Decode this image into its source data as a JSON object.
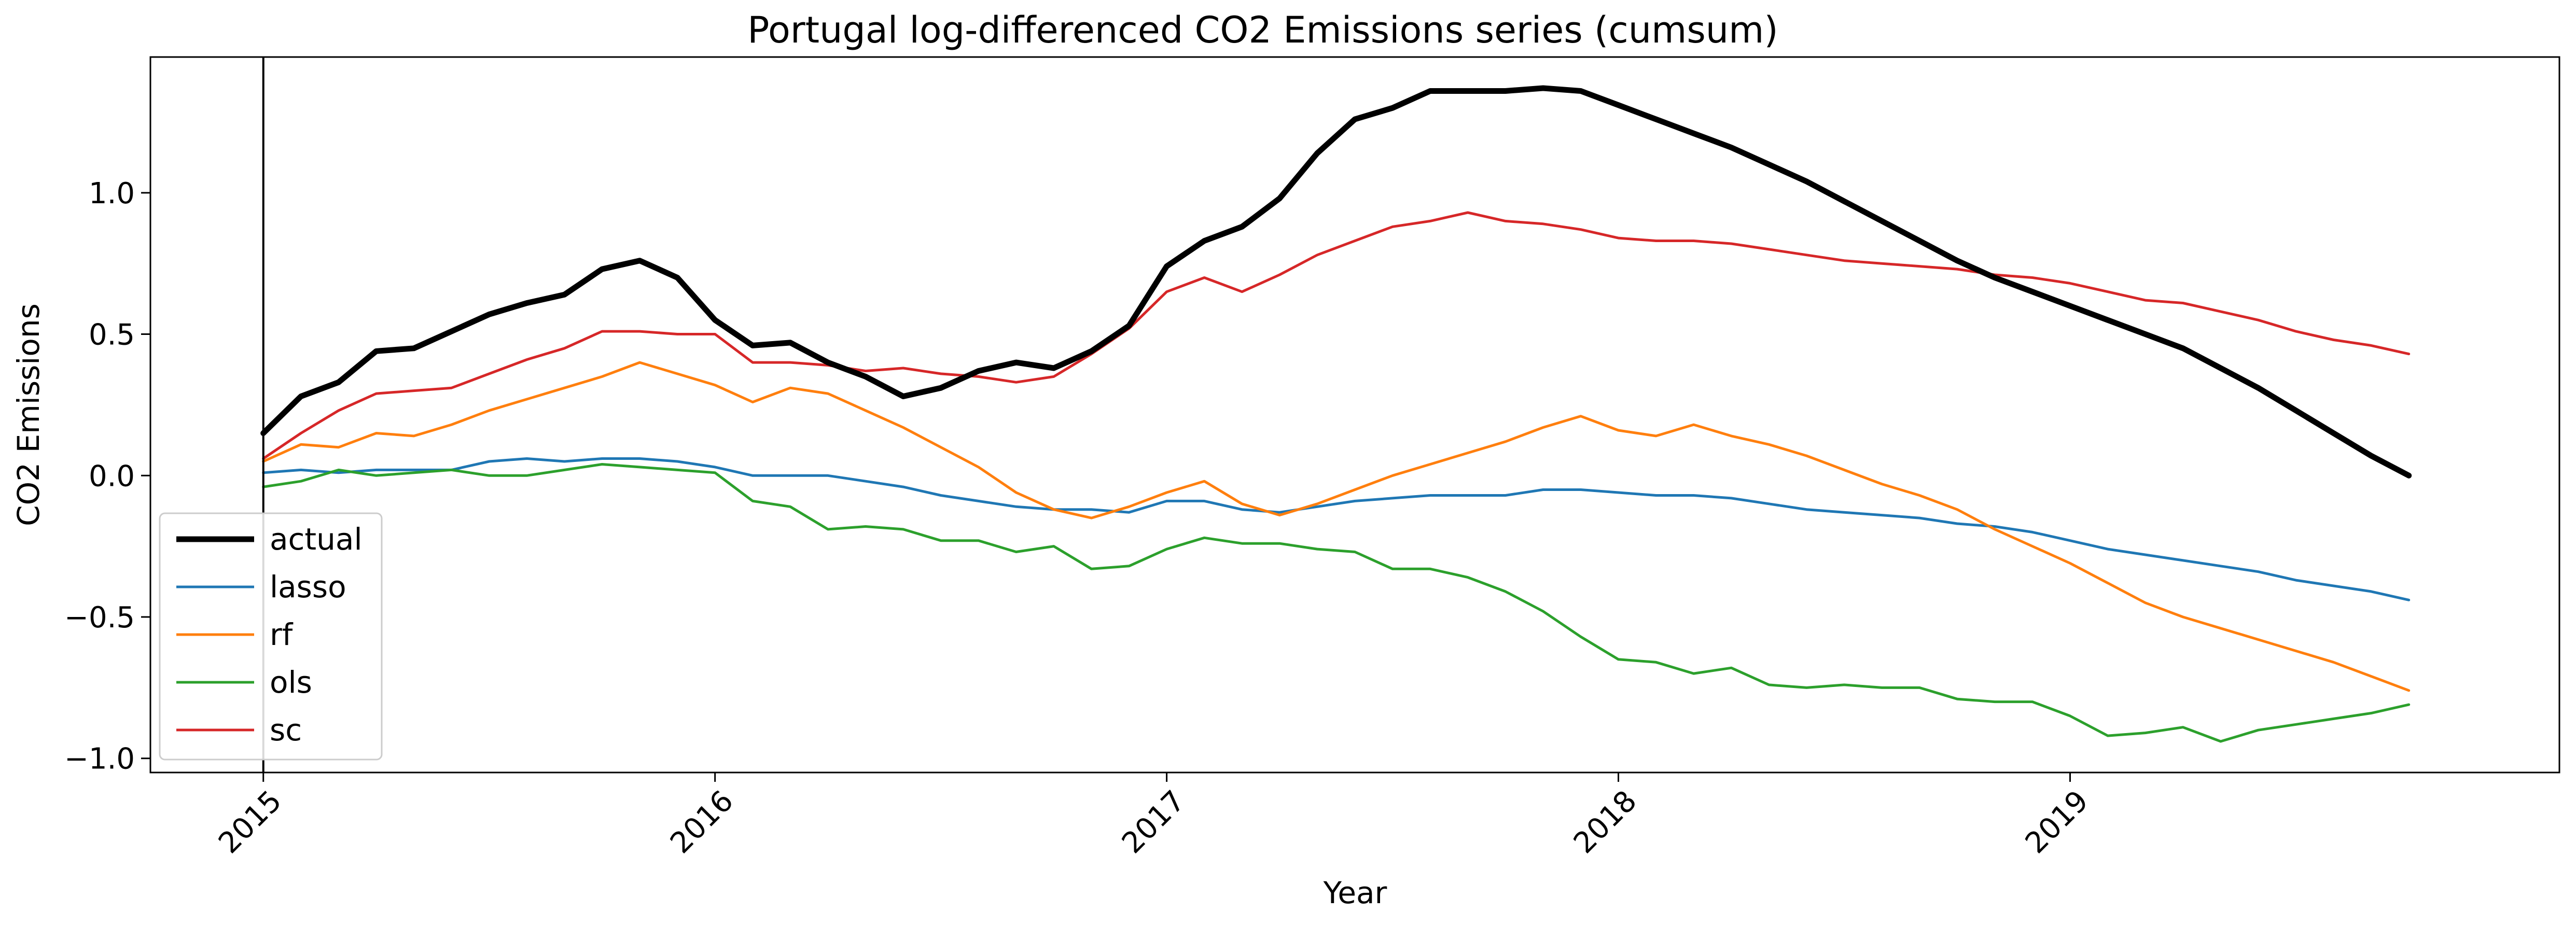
{
  "chart_data": {
    "type": "line",
    "title": "Portugal log-differenced CO2 Emissions series (cumsum)",
    "xlabel": "Year",
    "ylabel": "CO2 Emissions",
    "x_ticks": [
      "2015",
      "2016",
      "2017",
      "2018",
      "2019"
    ],
    "y_ticks": [
      "−1.0",
      "−0.5",
      "0.0",
      "0.5",
      "1.0"
    ],
    "y_tick_values": [
      -1.0,
      -0.5,
      0.0,
      0.5,
      1.0
    ],
    "xlim": [
      "2014-10",
      "2020-02"
    ],
    "ylim": [
      -1.05,
      1.48
    ],
    "vline_at": "2015-01",
    "grid": false,
    "legend_position": "lower-left",
    "x": [
      "2015-01",
      "2015-02",
      "2015-03",
      "2015-04",
      "2015-05",
      "2015-06",
      "2015-07",
      "2015-08",
      "2015-09",
      "2015-10",
      "2015-11",
      "2015-12",
      "2016-01",
      "2016-02",
      "2016-03",
      "2016-04",
      "2016-05",
      "2016-06",
      "2016-07",
      "2016-08",
      "2016-09",
      "2016-10",
      "2016-11",
      "2016-12",
      "2017-01",
      "2017-02",
      "2017-03",
      "2017-04",
      "2017-05",
      "2017-06",
      "2017-07",
      "2017-08",
      "2017-09",
      "2017-10",
      "2017-11",
      "2017-12",
      "2018-01",
      "2018-02",
      "2018-03",
      "2018-04",
      "2018-05",
      "2018-06",
      "2018-07",
      "2018-08",
      "2018-09",
      "2018-10",
      "2018-11",
      "2018-12",
      "2019-01",
      "2019-02",
      "2019-03",
      "2019-04",
      "2019-05",
      "2019-06",
      "2019-07",
      "2019-08",
      "2019-09",
      "2019-10"
    ],
    "series": [
      {
        "name": "actual",
        "color": "#000000",
        "width": 11,
        "values": [
          0.15,
          0.28,
          0.33,
          0.44,
          0.45,
          0.51,
          0.57,
          0.61,
          0.64,
          0.73,
          0.76,
          0.7,
          0.55,
          0.46,
          0.47,
          0.4,
          0.35,
          0.28,
          0.31,
          0.37,
          0.4,
          0.38,
          0.44,
          0.53,
          0.74,
          0.83,
          0.88,
          0.98,
          1.14,
          1.26,
          1.3,
          1.36,
          1.36,
          1.36,
          1.37,
          1.36,
          1.31,
          1.26,
          1.21,
          1.16,
          1.1,
          1.04,
          0.97,
          0.9,
          0.83,
          0.76,
          0.7,
          0.65,
          0.6,
          0.55,
          0.5,
          0.45,
          0.38,
          0.31,
          0.23,
          0.15,
          0.07,
          0.0
        ]
      },
      {
        "name": "lasso",
        "color": "#1f77b4",
        "width": 5,
        "values": [
          0.01,
          0.02,
          0.01,
          0.02,
          0.02,
          0.02,
          0.05,
          0.06,
          0.05,
          0.06,
          0.06,
          0.05,
          0.03,
          0.0,
          0.0,
          0.0,
          -0.02,
          -0.04,
          -0.07,
          -0.09,
          -0.11,
          -0.12,
          -0.12,
          -0.13,
          -0.09,
          -0.09,
          -0.12,
          -0.13,
          -0.11,
          -0.09,
          -0.08,
          -0.07,
          -0.07,
          -0.07,
          -0.05,
          -0.05,
          -0.06,
          -0.07,
          -0.07,
          -0.08,
          -0.1,
          -0.12,
          -0.13,
          -0.14,
          -0.15,
          -0.17,
          -0.18,
          -0.2,
          -0.23,
          -0.26,
          -0.28,
          -0.3,
          -0.32,
          -0.34,
          -0.37,
          -0.39,
          -0.41,
          -0.44
        ]
      },
      {
        "name": "rf",
        "color": "#ff7f0e",
        "width": 5,
        "values": [
          0.05,
          0.11,
          0.1,
          0.15,
          0.14,
          0.18,
          0.23,
          0.27,
          0.31,
          0.35,
          0.4,
          0.36,
          0.32,
          0.26,
          0.31,
          0.29,
          0.23,
          0.17,
          0.1,
          0.03,
          -0.06,
          -0.12,
          -0.15,
          -0.11,
          -0.06,
          -0.02,
          -0.1,
          -0.14,
          -0.1,
          -0.05,
          0.0,
          0.04,
          0.08,
          0.12,
          0.17,
          0.21,
          0.16,
          0.14,
          0.18,
          0.14,
          0.11,
          0.07,
          0.02,
          -0.03,
          -0.07,
          -0.12,
          -0.19,
          -0.25,
          -0.31,
          -0.38,
          -0.45,
          -0.5,
          -0.54,
          -0.58,
          -0.62,
          -0.66,
          -0.71,
          -0.76
        ]
      },
      {
        "name": "ols",
        "color": "#2ca02c",
        "width": 5,
        "values": [
          -0.04,
          -0.02,
          0.02,
          0.0,
          0.01,
          0.02,
          0.0,
          0.0,
          0.02,
          0.04,
          0.03,
          0.02,
          0.01,
          -0.09,
          -0.11,
          -0.19,
          -0.18,
          -0.19,
          -0.23,
          -0.23,
          -0.27,
          -0.25,
          -0.33,
          -0.32,
          -0.26,
          -0.22,
          -0.24,
          -0.24,
          -0.26,
          -0.27,
          -0.33,
          -0.33,
          -0.36,
          -0.41,
          -0.48,
          -0.57,
          -0.65,
          -0.66,
          -0.7,
          -0.68,
          -0.74,
          -0.75,
          -0.74,
          -0.75,
          -0.75,
          -0.79,
          -0.8,
          -0.8,
          -0.85,
          -0.92,
          -0.91,
          -0.89,
          -0.94,
          -0.9,
          -0.88,
          -0.86,
          -0.84,
          -0.81
        ]
      },
      {
        "name": "sc",
        "color": "#d62728",
        "width": 5,
        "values": [
          0.06,
          0.15,
          0.23,
          0.29,
          0.3,
          0.31,
          0.36,
          0.41,
          0.45,
          0.51,
          0.51,
          0.5,
          0.5,
          0.4,
          0.4,
          0.39,
          0.37,
          0.38,
          0.36,
          0.35,
          0.33,
          0.35,
          0.43,
          0.52,
          0.65,
          0.7,
          0.65,
          0.71,
          0.78,
          0.83,
          0.88,
          0.9,
          0.93,
          0.9,
          0.89,
          0.87,
          0.84,
          0.83,
          0.83,
          0.82,
          0.8,
          0.78,
          0.76,
          0.75,
          0.74,
          0.73,
          0.71,
          0.7,
          0.68,
          0.65,
          0.62,
          0.61,
          0.58,
          0.55,
          0.51,
          0.48,
          0.46,
          0.43
        ]
      }
    ]
  }
}
